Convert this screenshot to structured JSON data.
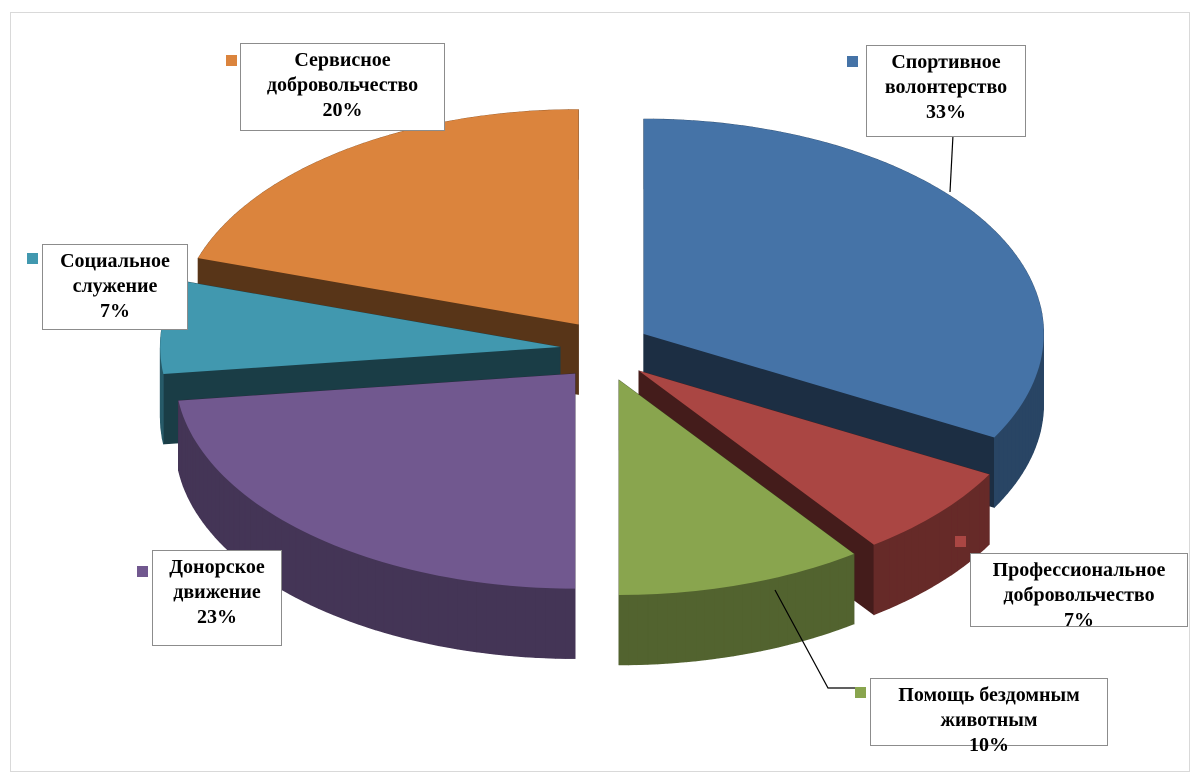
{
  "chart_data": {
    "type": "pie3d",
    "categories": [
      "Спортивное волонтерство",
      "Профессиональное добровольчество",
      "Помощь бездомным животным",
      "Донорское движение",
      "Социальное служение",
      "Сервисное добровольчество"
    ],
    "values": [
      33,
      7,
      10,
      23,
      7,
      20
    ],
    "value_labels": [
      "33%",
      "7%",
      "10%",
      "23%",
      "7%",
      "20%"
    ],
    "colors": [
      "#4573a7",
      "#aa4643",
      "#89a54e",
      "#71588f",
      "#4198af",
      "#db843d"
    ]
  }
}
